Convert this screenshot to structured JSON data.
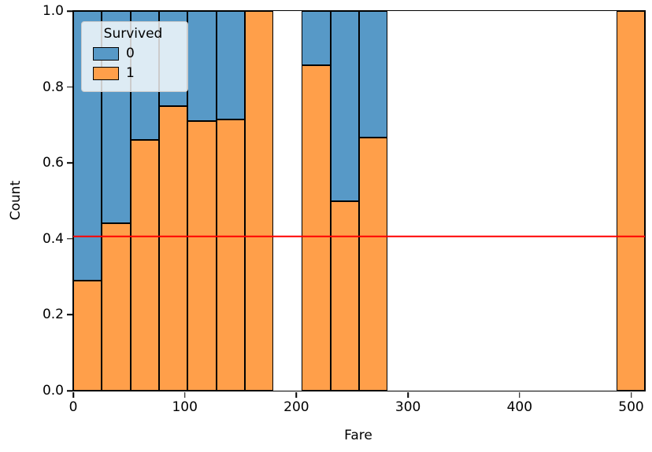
{
  "chart_data": {
    "type": "bar",
    "subtype": "normalized-stacked-histogram",
    "title": "",
    "xlabel": "Fare",
    "ylabel": "Count",
    "xlim": [
      0,
      512.33
    ],
    "ylim": [
      0.0,
      1.0
    ],
    "grid": false,
    "legend_position": "upper-left",
    "x_ticks": [
      {
        "value": 0,
        "label": "0"
      },
      {
        "value": 100,
        "label": "100"
      },
      {
        "value": 200,
        "label": "200"
      },
      {
        "value": 300,
        "label": "300"
      },
      {
        "value": 400,
        "label": "400"
      },
      {
        "value": 500,
        "label": "500"
      }
    ],
    "y_ticks": [
      {
        "value": 0.0,
        "label": "0.0"
      },
      {
        "value": 0.2,
        "label": "0.2"
      },
      {
        "value": 0.4,
        "label": "0.4"
      },
      {
        "value": 0.6,
        "label": "0.6"
      },
      {
        "value": 0.8,
        "label": "0.8"
      },
      {
        "value": 1.0,
        "label": "1.0"
      }
    ],
    "legend": {
      "title": "Survived",
      "entries": [
        {
          "label": "0",
          "color": "#5799c7"
        },
        {
          "label": "1",
          "color": "#ff9f4a"
        }
      ]
    },
    "colors": {
      "survived_0": "#5799c7",
      "survived_1": "#ff9f4a",
      "bar_edge": "#000000",
      "reference_line": "#ff0000"
    },
    "reference_line": {
      "y": 0.406,
      "color": "#ff0000"
    },
    "bins": [
      {
        "fare_start": 0.0,
        "fare_end": 25.6,
        "survived_1_fraction": 0.29,
        "survived_0_fraction": 0.71
      },
      {
        "fare_start": 25.6,
        "fare_end": 51.2,
        "survived_1_fraction": 0.44,
        "survived_0_fraction": 0.56
      },
      {
        "fare_start": 51.2,
        "fare_end": 76.8,
        "survived_1_fraction": 0.66,
        "survived_0_fraction": 0.34
      },
      {
        "fare_start": 76.8,
        "fare_end": 102.5,
        "survived_1_fraction": 0.75,
        "survived_0_fraction": 0.25
      },
      {
        "fare_start": 102.5,
        "fare_end": 128.1,
        "survived_1_fraction": 0.71,
        "survived_0_fraction": 0.29
      },
      {
        "fare_start": 128.1,
        "fare_end": 153.7,
        "survived_1_fraction": 0.715,
        "survived_0_fraction": 0.285
      },
      {
        "fare_start": 153.7,
        "fare_end": 179.3,
        "survived_1_fraction": 1.0,
        "survived_0_fraction": 0.0
      },
      {
        "fare_start": 204.9,
        "fare_end": 230.5,
        "survived_1_fraction": 0.857,
        "survived_0_fraction": 0.143
      },
      {
        "fare_start": 230.5,
        "fare_end": 256.2,
        "survived_1_fraction": 0.5,
        "survived_0_fraction": 0.5
      },
      {
        "fare_start": 256.2,
        "fare_end": 281.8,
        "survived_1_fraction": 0.667,
        "survived_0_fraction": 0.333
      },
      {
        "fare_start": 486.7,
        "fare_end": 512.33,
        "survived_1_fraction": 1.0,
        "survived_0_fraction": 0.0
      }
    ]
  }
}
